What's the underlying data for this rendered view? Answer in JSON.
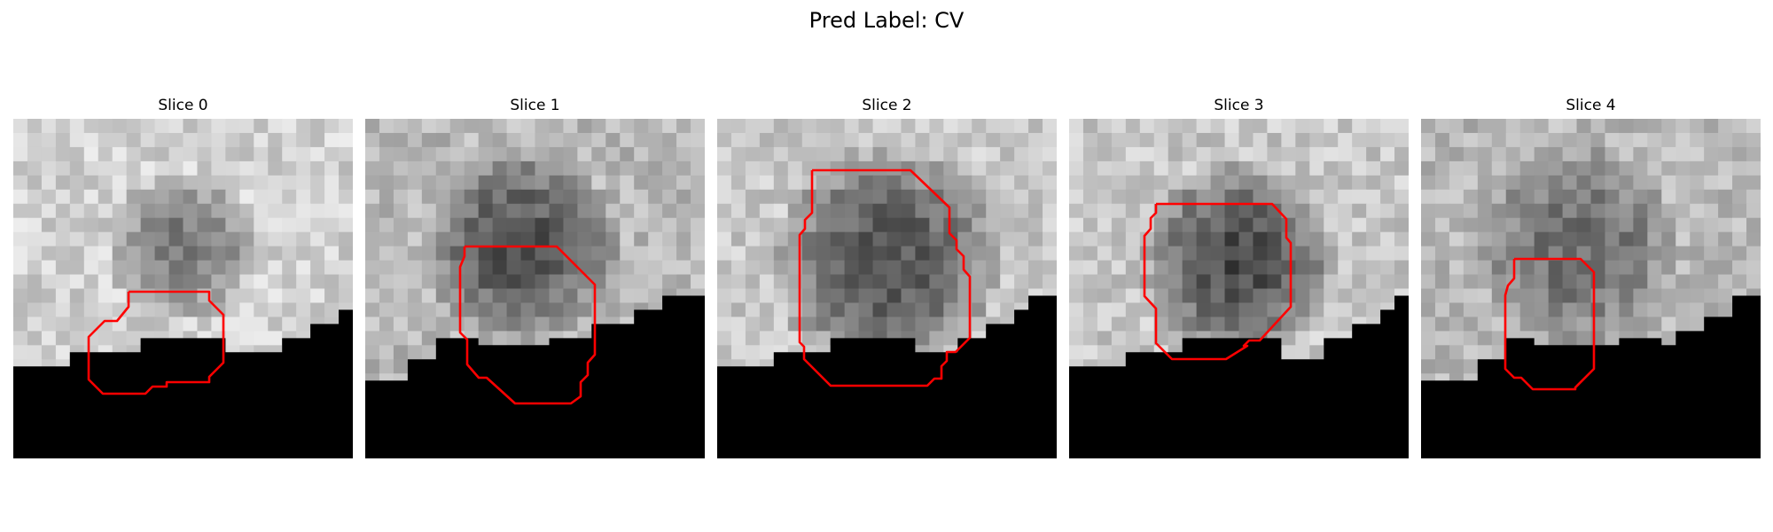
{
  "figure": {
    "suptitle": "Pred Label: CV"
  },
  "panels": [
    {
      "title": "Slice 0"
    },
    {
      "title": "Slice 1"
    },
    {
      "title": "Slice 2"
    },
    {
      "title": "Slice 3"
    },
    {
      "title": "Slice 4"
    }
  ],
  "colors": {
    "contour": "#ff0000",
    "background": "#ffffff",
    "masked_region": "#000000"
  }
}
